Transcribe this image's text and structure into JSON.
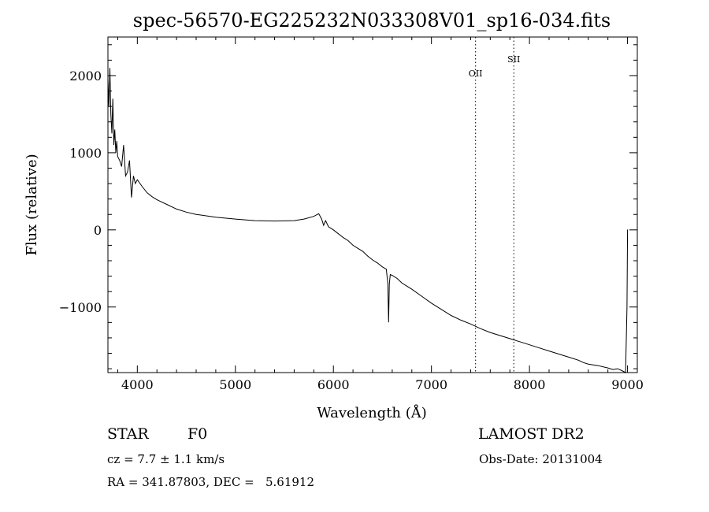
{
  "chart_data": {
    "type": "line",
    "title": "spec-56570-EG225232N033308V01_sp16-034.fits",
    "xlabel": "Wavelength (Å)",
    "ylabel": "Flux (relative)",
    "xlim": [
      3700,
      9100
    ],
    "ylim": [
      -1850,
      2500
    ],
    "xticks": [
      4000,
      5000,
      6000,
      7000,
      8000,
      9000
    ],
    "yticks": [
      -1000,
      0,
      1000,
      2000
    ],
    "xtick_labels": [
      "4000",
      "5000",
      "6000",
      "7000",
      "8000",
      "9000"
    ],
    "ytick_labels": [
      "−1000",
      "0",
      "1000",
      "2000"
    ],
    "grid": false,
    "series": [
      {
        "x": [
          3700,
          3710,
          3720,
          3730,
          3740,
          3750,
          3760,
          3770,
          3780,
          3790,
          3800,
          3820,
          3840,
          3860,
          3880,
          3900,
          3920,
          3940,
          3960,
          3980,
          4000,
          4050,
          4100,
          4150,
          4200,
          4300,
          4400,
          4500,
          4600,
          4800,
          5000,
          5200,
          5400,
          5600,
          5700,
          5800,
          5850,
          5880,
          5900,
          5920,
          5950,
          6000,
          6050,
          6100,
          6150,
          6200,
          6250,
          6300,
          6350,
          6400,
          6450,
          6500,
          6540,
          6555,
          6563,
          6570,
          6580,
          6600,
          6650,
          6700,
          6750,
          6800,
          6900,
          7000,
          7100,
          7200,
          7300,
          7400,
          7500,
          7600,
          7700,
          7800,
          7900,
          8000,
          8100,
          8200,
          8300,
          8400,
          8500,
          8550,
          8600,
          8700,
          8800,
          8850,
          8900,
          8950,
          8980,
          8995,
          9000,
          9002
        ],
        "y": [
          1950,
          1600,
          2100,
          1500,
          1250,
          1700,
          1100,
          1300,
          1000,
          1150,
          950,
          900,
          820,
          1100,
          700,
          750,
          900,
          420,
          700,
          600,
          650,
          560,
          480,
          430,
          390,
          330,
          270,
          230,
          200,
          165,
          140,
          120,
          115,
          120,
          140,
          175,
          210,
          140,
          60,
          120,
          40,
          0,
          -50,
          -100,
          -140,
          -200,
          -240,
          -280,
          -340,
          -390,
          -430,
          -480,
          -510,
          -700,
          -1200,
          -700,
          -580,
          -590,
          -630,
          -690,
          -730,
          -770,
          -860,
          -950,
          -1030,
          -1110,
          -1170,
          -1220,
          -1280,
          -1330,
          -1370,
          -1410,
          -1450,
          -1490,
          -1530,
          -1570,
          -1610,
          -1650,
          -1690,
          -1720,
          -1740,
          -1760,
          -1790,
          -1810,
          -1800,
          -1830,
          -1850,
          -1000,
          0,
          0
        ]
      }
    ],
    "annotations": [
      {
        "label": "OII",
        "x": 7450
      },
      {
        "label": "SII",
        "x": 7840
      }
    ]
  },
  "info": {
    "class_label": "STAR",
    "subclass_label": "F0",
    "survey": "LAMOST DR2",
    "cz": "cz = 7.7 ± 1.1 km/s",
    "obs_date": "Obs-Date: 20131004",
    "coords": "RA = 341.87803, DEC =   5.61912"
  }
}
